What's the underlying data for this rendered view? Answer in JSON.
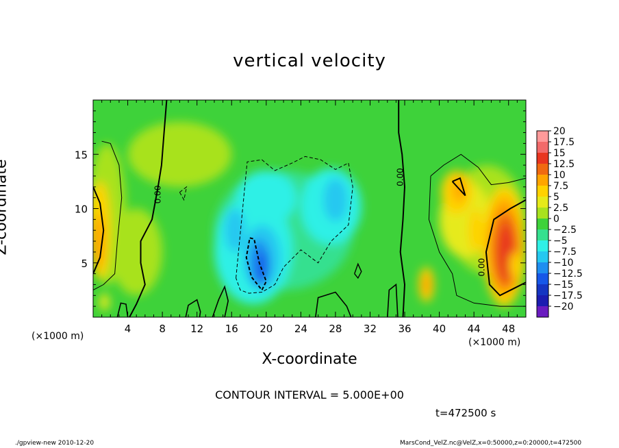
{
  "chart_data": {
    "type": "heatmap",
    "title": "vertical velocity",
    "xlabel": "X-coordinate",
    "ylabel": "Z-coordinate",
    "x_unit": "(×1000 m)",
    "z_unit": "(×1000 m)",
    "xlim": [
      0,
      50
    ],
    "ylim": [
      0,
      20
    ],
    "x_ticks": [
      4,
      8,
      12,
      16,
      20,
      24,
      28,
      32,
      36,
      40,
      44,
      48
    ],
    "y_ticks": [
      5,
      10,
      15
    ],
    "colorbar": {
      "levels": [
        "20",
        "17.5",
        "15",
        "12.5",
        "10",
        "7.5",
        "5",
        "2.5",
        "0",
        "-2.5",
        "-5",
        "-7.5",
        "-10",
        "-12.5",
        "-15",
        "-17.5",
        "-20"
      ],
      "colors": [
        "#ff9a9a",
        "#f26a6a",
        "#e8351f",
        "#f06a10",
        "#ffa500",
        "#ffd200",
        "#e6ea1a",
        "#a8e21f",
        "#3ed23a",
        "#35e08f",
        "#2ff0e6",
        "#25c8f0",
        "#1e8ef0",
        "#1657e8",
        "#1535c2",
        "#1c1cb0",
        "#6a1cc0"
      ]
    },
    "contour_labels": [
      {
        "x": 7.8,
        "z": 11.3,
        "text": "0.00"
      },
      {
        "x": 35.8,
        "z": 12.9,
        "text": "0.00"
      },
      {
        "x": 45.2,
        "z": 4.6,
        "text": "0.00"
      }
    ],
    "features": [
      {
        "name": "downdraft",
        "x": [
          13.5,
          31
        ],
        "z": [
          1,
          14.5
        ],
        "peak_value": -12.5
      },
      {
        "name": "updraft",
        "x": [
          39,
          50
        ],
        "z": [
          1,
          14
        ],
        "peak_value": 15
      },
      {
        "name": "updraft",
        "x": [
          0,
          3.5
        ],
        "z": [
          3,
          16
        ],
        "peak_value": 10
      }
    ],
    "contour_interval": "CONTOUR INTERVAL = 5.000E+00",
    "time_label": "t=472500  s"
  },
  "footer": {
    "left": "./gpview-new  2010-12-20",
    "right": "MarsCond_VelZ.nc@VelZ,x=0:50000,z=0:20000,t=472500"
  }
}
